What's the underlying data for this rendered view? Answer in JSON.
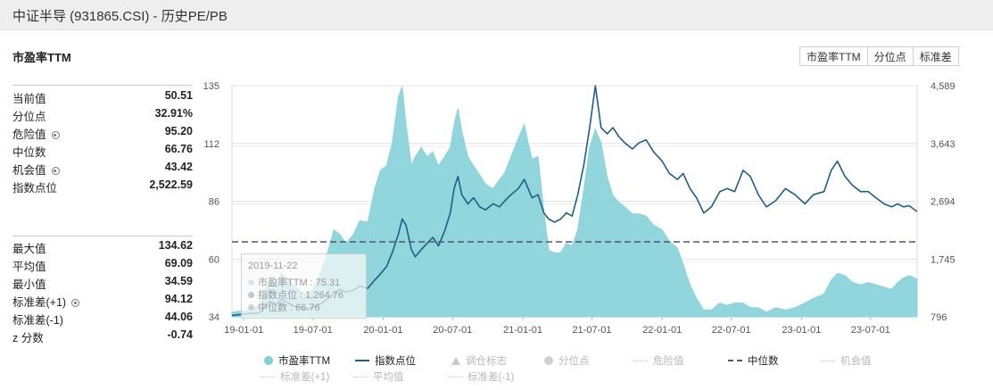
{
  "window": {
    "title": "中证半导 (931865.CSI) - 历史PE/PB"
  },
  "section_title": "市盈率TTM",
  "buttons": [
    "市盈率TTM",
    "分位点",
    "标准差"
  ],
  "stats_top": [
    {
      "label": "当前值",
      "value": "50.51",
      "gear": false
    },
    {
      "label": "分位点",
      "value": "32.91%",
      "gear": false
    },
    {
      "label": "危险值",
      "value": "95.20",
      "gear": true
    },
    {
      "label": "中位数",
      "value": "66.76",
      "gear": false
    },
    {
      "label": "机会值",
      "value": "43.42",
      "gear": true
    },
    {
      "label": "指数点位",
      "value": "2,522.59",
      "gear": false
    }
  ],
  "stats_bottom": [
    {
      "label": "最大值",
      "value": "134.62",
      "gear": false
    },
    {
      "label": "平均值",
      "value": "69.09",
      "gear": false
    },
    {
      "label": "最小值",
      "value": "34.59",
      "gear": false
    },
    {
      "label": "标准差(+1)",
      "value": "94.12",
      "gear": true
    },
    {
      "label": "标准差(-1)",
      "value": "44.06",
      "gear": false
    },
    {
      "label": "z 分数",
      "value": "-0.74",
      "gear": false
    }
  ],
  "tooltip": {
    "date": "2019-11-22",
    "rows": [
      "市盈率TTM : 75.31",
      "指数点位 : 1,264.76",
      "中位数 : 66.76"
    ]
  },
  "legend": [
    {
      "label": "市盈率TTM",
      "marker": "circle",
      "color": "#7ecfd6",
      "active": true
    },
    {
      "label": "指数点位",
      "marker": "line",
      "color": "#1f5f86",
      "active": true
    },
    {
      "label": "调仓标志",
      "marker": "triangle",
      "color": "#c8c8c8",
      "active": false
    },
    {
      "label": "分位点",
      "marker": "circle",
      "color": "#d0d0d0",
      "active": false
    },
    {
      "label": "危险值",
      "marker": "dashdot",
      "color": "#c8c8c8",
      "active": false
    },
    {
      "label": "中位数",
      "marker": "dash",
      "color": "#555566",
      "active": true
    },
    {
      "label": "机会值",
      "marker": "dashdot",
      "color": "#c8c8c8",
      "active": false
    },
    {
      "label": "标准差(+1)",
      "marker": "dashdot",
      "color": "#c8c8c8",
      "active": false
    },
    {
      "label": "平均值",
      "marker": "dashdot",
      "color": "#c8c8c8",
      "active": false
    },
    {
      "label": "标准差(-1)",
      "marker": "dashdot",
      "color": "#c8c8c8",
      "active": false
    }
  ],
  "chart_data": {
    "type": "area",
    "x_tick_labels": [
      "19-01-01",
      "19-07-01",
      "20-01-01",
      "20-07-01",
      "21-01-01",
      "21-07-01",
      "22-01-01",
      "22-07-01",
      "23-01-01",
      "23-07-01"
    ],
    "x_range": [
      "2018-12-01",
      "2023-10-31"
    ],
    "y_left": {
      "ticks": [
        "135",
        "112",
        "86",
        "60",
        "34"
      ],
      "range": [
        34,
        135
      ]
    },
    "y_right": {
      "ticks": [
        "4,589",
        "3,643",
        "2,694",
        "1,745",
        "796"
      ],
      "range": [
        796,
        4589
      ]
    },
    "grid": true,
    "median_line": 66.76,
    "series": [
      {
        "name": "市盈率TTM",
        "axis": "left",
        "color": "#7ecfd6",
        "points": [
          [
            "2018-12-01",
            36
          ],
          [
            "2019-01-15",
            37
          ],
          [
            "2019-02-10",
            39
          ],
          [
            "2019-02-25",
            45
          ],
          [
            "2019-03-10",
            50
          ],
          [
            "2019-03-25",
            49
          ],
          [
            "2019-04-10",
            53
          ],
          [
            "2019-05-10",
            48
          ],
          [
            "2019-06-10",
            44
          ],
          [
            "2019-07-01",
            46
          ],
          [
            "2019-07-25",
            55
          ],
          [
            "2019-08-10",
            63
          ],
          [
            "2019-08-25",
            72
          ],
          [
            "2019-09-10",
            70
          ],
          [
            "2019-09-25",
            66
          ],
          [
            "2019-10-15",
            70
          ],
          [
            "2019-11-01",
            76
          ],
          [
            "2019-11-22",
            75.3
          ],
          [
            "2019-12-10",
            90
          ],
          [
            "2019-12-25",
            98
          ],
          [
            "2020-01-10",
            100
          ],
          [
            "2020-01-25",
            110
          ],
          [
            "2020-02-10",
            130
          ],
          [
            "2020-02-20",
            134.6
          ],
          [
            "2020-03-01",
            118
          ],
          [
            "2020-03-15",
            100
          ],
          [
            "2020-03-25",
            104
          ],
          [
            "2020-04-10",
            108
          ],
          [
            "2020-04-25",
            104
          ],
          [
            "2020-05-10",
            106
          ],
          [
            "2020-05-25",
            100
          ],
          [
            "2020-06-10",
            104
          ],
          [
            "2020-06-25",
            108
          ],
          [
            "2020-07-05",
            118
          ],
          [
            "2020-07-15",
            125
          ],
          [
            "2020-07-25",
            115
          ],
          [
            "2020-08-10",
            104
          ],
          [
            "2020-08-25",
            100
          ],
          [
            "2020-09-10",
            96
          ],
          [
            "2020-09-25",
            92
          ],
          [
            "2020-10-15",
            90
          ],
          [
            "2020-11-01",
            94
          ],
          [
            "2020-11-15",
            97
          ],
          [
            "2020-12-01",
            104
          ],
          [
            "2020-12-20",
            112
          ],
          [
            "2021-01-05",
            118
          ],
          [
            "2021-01-15",
            110
          ],
          [
            "2021-01-25",
            103
          ],
          [
            "2021-02-10",
            104
          ],
          [
            "2021-02-25",
            80
          ],
          [
            "2021-03-10",
            63
          ],
          [
            "2021-03-25",
            62
          ],
          [
            "2021-04-10",
            62
          ],
          [
            "2021-04-25",
            66
          ],
          [
            "2021-05-10",
            65
          ],
          [
            "2021-05-25",
            72
          ],
          [
            "2021-06-10",
            90
          ],
          [
            "2021-06-25",
            108
          ],
          [
            "2021-07-10",
            116
          ],
          [
            "2021-07-25",
            110
          ],
          [
            "2021-08-10",
            95
          ],
          [
            "2021-08-25",
            87
          ],
          [
            "2021-09-10",
            84
          ],
          [
            "2021-09-25",
            82
          ],
          [
            "2021-10-15",
            79
          ],
          [
            "2021-11-01",
            79
          ],
          [
            "2021-11-20",
            78
          ],
          [
            "2021-12-10",
            74
          ],
          [
            "2022-01-01",
            72
          ],
          [
            "2022-01-20",
            67
          ],
          [
            "2022-02-10",
            64
          ],
          [
            "2022-02-25",
            57
          ],
          [
            "2022-03-15",
            48
          ],
          [
            "2022-04-01",
            42
          ],
          [
            "2022-04-20",
            37
          ],
          [
            "2022-05-10",
            37
          ],
          [
            "2022-06-01",
            40
          ],
          [
            "2022-06-20",
            39
          ],
          [
            "2022-07-10",
            40
          ],
          [
            "2022-08-01",
            40
          ],
          [
            "2022-08-20",
            38
          ],
          [
            "2022-09-10",
            38
          ],
          [
            "2022-10-01",
            36
          ],
          [
            "2022-10-25",
            38
          ],
          [
            "2022-11-20",
            37
          ],
          [
            "2022-12-15",
            38
          ],
          [
            "2023-01-10",
            40
          ],
          [
            "2023-02-01",
            42
          ],
          [
            "2023-03-01",
            44
          ],
          [
            "2023-03-20",
            50
          ],
          [
            "2023-04-05",
            53
          ],
          [
            "2023-04-25",
            52
          ],
          [
            "2023-05-15",
            49
          ],
          [
            "2023-06-05",
            48
          ],
          [
            "2023-06-25",
            49
          ],
          [
            "2023-07-15",
            48
          ],
          [
            "2023-08-05",
            47
          ],
          [
            "2023-08-25",
            46
          ],
          [
            "2023-09-10",
            49
          ],
          [
            "2023-09-25",
            51
          ],
          [
            "2023-10-10",
            52
          ],
          [
            "2023-10-31",
            50.5
          ]
        ]
      },
      {
        "name": "指数点位",
        "axis": "right",
        "color": "#1f5f86",
        "points": [
          [
            "2018-12-01",
            820
          ],
          [
            "2019-01-15",
            850
          ],
          [
            "2019-02-10",
            860
          ],
          [
            "2019-02-25",
            960
          ],
          [
            "2019-03-10",
            1050
          ],
          [
            "2019-03-25",
            1000
          ],
          [
            "2019-04-10",
            1080
          ],
          [
            "2019-05-10",
            980
          ],
          [
            "2019-06-10",
            920
          ],
          [
            "2019-07-01",
            950
          ],
          [
            "2019-07-25",
            1020
          ],
          [
            "2019-08-10",
            1100
          ],
          [
            "2019-08-25",
            1180
          ],
          [
            "2019-09-10",
            1250
          ],
          [
            "2019-09-25",
            1200
          ],
          [
            "2019-10-15",
            1230
          ],
          [
            "2019-11-01",
            1300
          ],
          [
            "2019-11-22",
            1264.76
          ],
          [
            "2019-12-10",
            1400
          ],
          [
            "2019-12-25",
            1500
          ],
          [
            "2020-01-10",
            1620
          ],
          [
            "2020-01-25",
            1850
          ],
          [
            "2020-02-10",
            2150
          ],
          [
            "2020-02-20",
            2400
          ],
          [
            "2020-03-01",
            2300
          ],
          [
            "2020-03-15",
            1900
          ],
          [
            "2020-03-25",
            1780
          ],
          [
            "2020-04-10",
            1900
          ],
          [
            "2020-04-25",
            2000
          ],
          [
            "2020-05-10",
            2100
          ],
          [
            "2020-05-25",
            1960
          ],
          [
            "2020-06-10",
            2200
          ],
          [
            "2020-06-25",
            2500
          ],
          [
            "2020-07-05",
            2900
          ],
          [
            "2020-07-15",
            3100
          ],
          [
            "2020-07-25",
            2800
          ],
          [
            "2020-08-10",
            2650
          ],
          [
            "2020-08-25",
            2750
          ],
          [
            "2020-09-10",
            2600
          ],
          [
            "2020-09-25",
            2550
          ],
          [
            "2020-10-15",
            2650
          ],
          [
            "2020-11-01",
            2600
          ],
          [
            "2020-11-15",
            2700
          ],
          [
            "2020-12-01",
            2800
          ],
          [
            "2020-12-20",
            2900
          ],
          [
            "2021-01-05",
            3050
          ],
          [
            "2021-01-15",
            2900
          ],
          [
            "2021-01-25",
            2750
          ],
          [
            "2021-02-10",
            2800
          ],
          [
            "2021-02-25",
            2500
          ],
          [
            "2021-03-10",
            2400
          ],
          [
            "2021-03-25",
            2350
          ],
          [
            "2021-04-10",
            2400
          ],
          [
            "2021-04-25",
            2500
          ],
          [
            "2021-05-10",
            2450
          ],
          [
            "2021-05-25",
            2800
          ],
          [
            "2021-06-10",
            3300
          ],
          [
            "2021-06-25",
            3900
          ],
          [
            "2021-07-10",
            4589
          ],
          [
            "2021-07-25",
            3900
          ],
          [
            "2021-08-10",
            3800
          ],
          [
            "2021-08-25",
            3900
          ],
          [
            "2021-09-10",
            3750
          ],
          [
            "2021-09-25",
            3650
          ],
          [
            "2021-10-15",
            3550
          ],
          [
            "2021-11-01",
            3650
          ],
          [
            "2021-11-20",
            3700
          ],
          [
            "2021-12-10",
            3500
          ],
          [
            "2022-01-01",
            3350
          ],
          [
            "2022-01-20",
            3150
          ],
          [
            "2022-02-10",
            3050
          ],
          [
            "2022-02-25",
            3150
          ],
          [
            "2022-03-15",
            2900
          ],
          [
            "2022-04-01",
            2750
          ],
          [
            "2022-04-20",
            2500
          ],
          [
            "2022-05-10",
            2600
          ],
          [
            "2022-06-01",
            2850
          ],
          [
            "2022-06-20",
            2900
          ],
          [
            "2022-07-10",
            2850
          ],
          [
            "2022-08-01",
            3200
          ],
          [
            "2022-08-20",
            3100
          ],
          [
            "2022-09-10",
            2800
          ],
          [
            "2022-10-01",
            2600
          ],
          [
            "2022-10-25",
            2700
          ],
          [
            "2022-11-20",
            2900
          ],
          [
            "2022-12-15",
            2800
          ],
          [
            "2023-01-10",
            2650
          ],
          [
            "2023-02-01",
            2800
          ],
          [
            "2023-03-01",
            2850
          ],
          [
            "2023-03-20",
            3200
          ],
          [
            "2023-04-05",
            3350
          ],
          [
            "2023-04-25",
            3100
          ],
          [
            "2023-05-15",
            2950
          ],
          [
            "2023-06-05",
            2850
          ],
          [
            "2023-06-25",
            2850
          ],
          [
            "2023-07-15",
            2750
          ],
          [
            "2023-08-05",
            2650
          ],
          [
            "2023-08-25",
            2600
          ],
          [
            "2023-09-10",
            2650
          ],
          [
            "2023-09-25",
            2600
          ],
          [
            "2023-10-10",
            2620
          ],
          [
            "2023-10-31",
            2522.59
          ]
        ]
      }
    ]
  }
}
